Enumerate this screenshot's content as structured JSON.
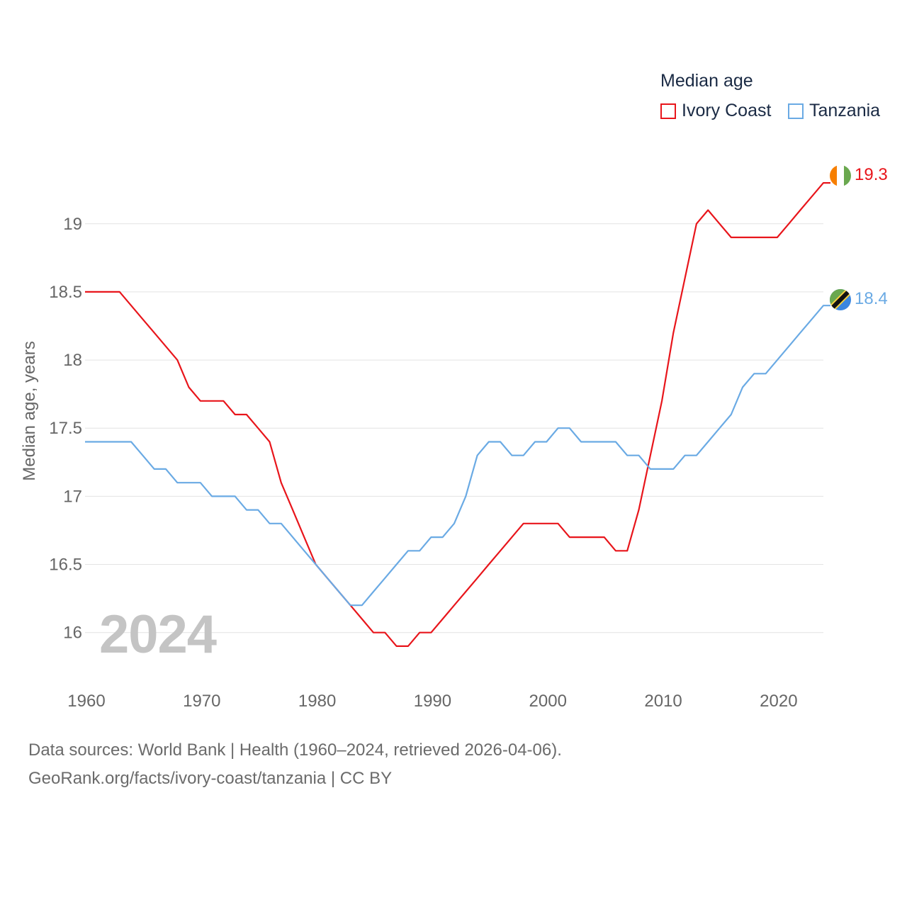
{
  "legend": {
    "title": "Median age",
    "items": [
      {
        "label": "Ivory Coast",
        "color": "#e8151b"
      },
      {
        "label": "Tanzania",
        "color": "#6aaae4"
      }
    ]
  },
  "year_label": "2024",
  "footer": {
    "line1": "Data sources: World Bank | Health (1960–2024, retrieved 2026-04-06).",
    "line2": "GeoRank.org/facts/ivory-coast/tanzania | CC BY"
  },
  "chart_data": {
    "type": "line",
    "title": "Median age",
    "xlabel": "",
    "ylabel": "Median age, years",
    "xlim": [
      1960,
      2024
    ],
    "ylim": [
      15.65,
      19.55
    ],
    "x_ticks": [
      1960,
      1970,
      1980,
      1990,
      2000,
      2010,
      2020
    ],
    "x_tick_labels": [
      "1960",
      "1970",
      "1980",
      "1990",
      "2000",
      "2010",
      "2020"
    ],
    "y_ticks": [
      16,
      16.5,
      17,
      17.5,
      18,
      18.5,
      19
    ],
    "y_tick_labels": [
      "16",
      "16.5",
      "17",
      "17.5",
      "18",
      "18.5",
      "19"
    ],
    "grid": true,
    "x": [
      1960,
      1961,
      1962,
      1963,
      1964,
      1965,
      1966,
      1967,
      1968,
      1969,
      1970,
      1971,
      1972,
      1973,
      1974,
      1975,
      1976,
      1977,
      1978,
      1979,
      1980,
      1981,
      1982,
      1983,
      1984,
      1985,
      1986,
      1987,
      1988,
      1989,
      1990,
      1991,
      1992,
      1993,
      1994,
      1995,
      1996,
      1997,
      1998,
      1999,
      2000,
      2001,
      2002,
      2003,
      2004,
      2005,
      2006,
      2007,
      2008,
      2009,
      2010,
      2011,
      2012,
      2013,
      2014,
      2015,
      2016,
      2017,
      2018,
      2019,
      2020,
      2021,
      2022,
      2023,
      2024
    ],
    "series": [
      {
        "name": "Ivory Coast",
        "color": "#e8151b",
        "end_label": "19.3",
        "values": [
          18.5,
          18.5,
          18.5,
          18.5,
          18.4,
          18.3,
          18.2,
          18.1,
          18.0,
          17.8,
          17.7,
          17.7,
          17.7,
          17.6,
          17.6,
          17.5,
          17.4,
          17.1,
          16.9,
          16.7,
          16.5,
          16.4,
          16.3,
          16.2,
          16.1,
          16.0,
          16.0,
          15.9,
          15.9,
          16.0,
          16.0,
          16.1,
          16.2,
          16.3,
          16.4,
          16.5,
          16.6,
          16.7,
          16.8,
          16.8,
          16.8,
          16.8,
          16.7,
          16.7,
          16.7,
          16.7,
          16.6,
          16.6,
          16.9,
          17.3,
          17.7,
          18.2,
          18.6,
          19.0,
          19.1,
          19.0,
          18.9,
          18.9,
          18.9,
          18.9,
          18.9,
          19.0,
          19.1,
          19.2,
          19.3
        ]
      },
      {
        "name": "Tanzania",
        "color": "#6aaae4",
        "end_label": "18.4",
        "values": [
          17.4,
          17.4,
          17.4,
          17.4,
          17.4,
          17.3,
          17.2,
          17.2,
          17.1,
          17.1,
          17.1,
          17.0,
          17.0,
          17.0,
          16.9,
          16.9,
          16.8,
          16.8,
          16.7,
          16.6,
          16.5,
          16.4,
          16.3,
          16.2,
          16.2,
          16.3,
          16.4,
          16.5,
          16.6,
          16.6,
          16.7,
          16.7,
          16.8,
          17.0,
          17.3,
          17.4,
          17.4,
          17.3,
          17.3,
          17.4,
          17.4,
          17.5,
          17.5,
          17.4,
          17.4,
          17.4,
          17.4,
          17.3,
          17.3,
          17.2,
          17.2,
          17.2,
          17.3,
          17.3,
          17.4,
          17.5,
          17.6,
          17.8,
          17.9,
          17.9,
          18.0,
          18.1,
          18.2,
          18.3,
          18.4
        ]
      }
    ]
  }
}
